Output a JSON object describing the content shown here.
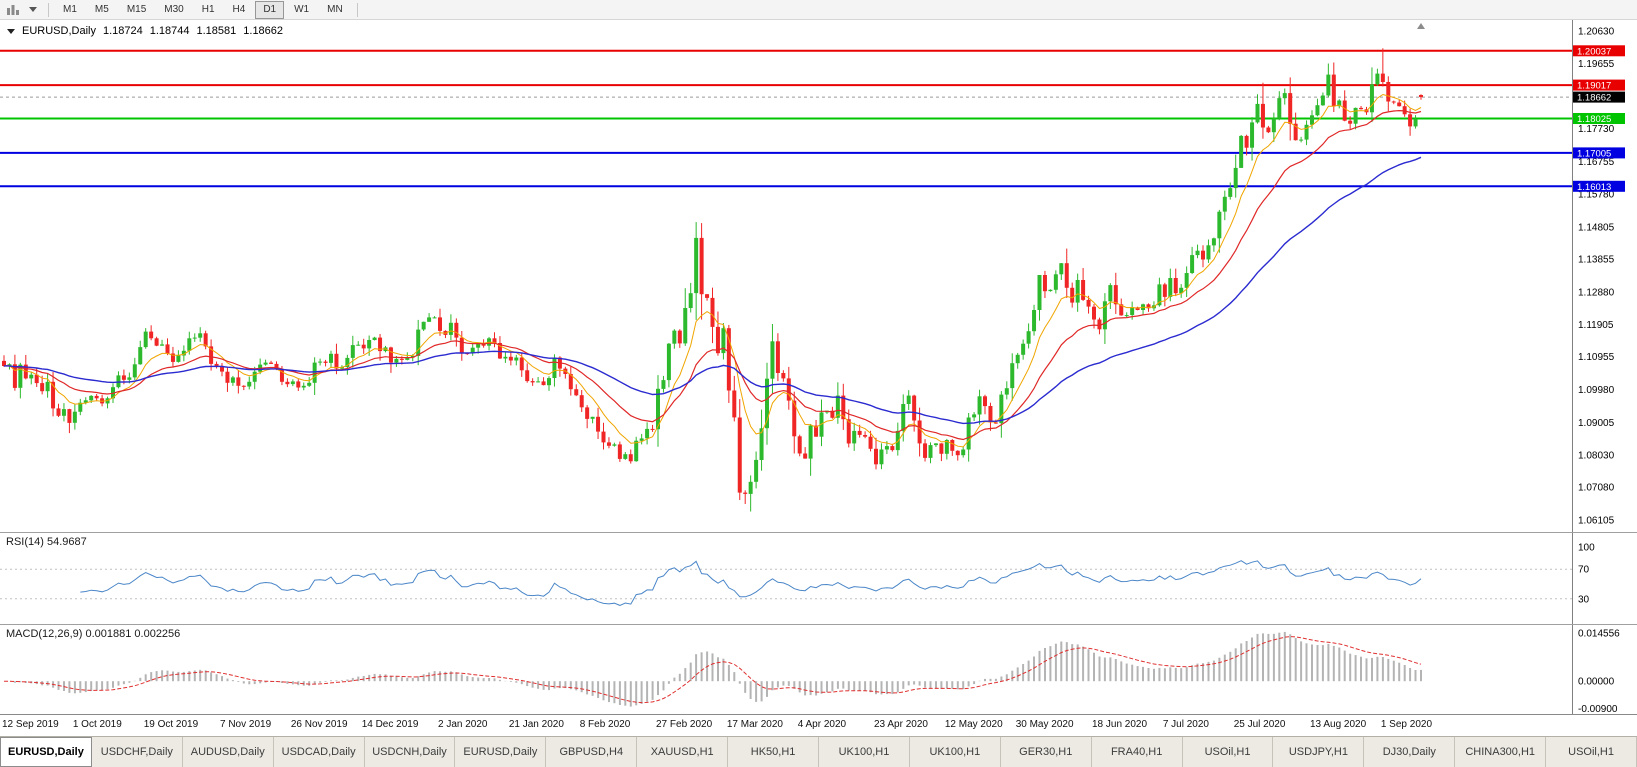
{
  "toolbar": {
    "timeframes": [
      "M1",
      "M5",
      "M15",
      "M30",
      "H1",
      "H4",
      "D1",
      "W1",
      "MN"
    ],
    "active_timeframe": "D1"
  },
  "chart": {
    "title": "EURUSD,Daily",
    "ohlc": {
      "open": "1.18724",
      "high": "1.18744",
      "low": "1.18581",
      "close": "1.18662"
    },
    "rsi_label": "RSI(14) 54.9687",
    "macd_label": "MACD(12,26,9) 0.001881 0.002256"
  },
  "chart_data": {
    "type": "candlestick",
    "symbol": "EURUSD",
    "timeframe": "Daily",
    "colors": {
      "up": "#2db92d",
      "down": "#f02525"
    },
    "price_range": {
      "min": 1.0575,
      "max": 1.2095
    },
    "closes": [
      1.1068,
      1.1073,
      1.1003,
      1.1072,
      1.1031,
      1.1042,
      1.1017,
      1.0993,
      1.1021,
      1.0942,
      1.092,
      1.094,
      1.0899,
      1.0932,
      1.0959,
      1.0966,
      1.0979,
      1.0972,
      1.0957,
      1.0972,
      1.1005,
      1.104,
      1.1027,
      1.1034,
      1.1073,
      1.1124,
      1.117,
      1.115,
      1.1128,
      1.1132,
      1.1105,
      1.108,
      1.1099,
      1.1113,
      1.115,
      1.1152,
      1.1165,
      1.1126,
      1.1074,
      1.1068,
      1.1051,
      1.1018,
      1.1034,
      1.1009,
      1.1007,
      1.1021,
      1.1051,
      1.1072,
      1.1078,
      1.1074,
      1.1058,
      1.1021,
      1.1014,
      1.1022,
      1.1004,
      1.1009,
      1.1018,
      1.1078,
      1.1081,
      1.1077,
      1.1104,
      1.106,
      1.1065,
      1.1092,
      1.113,
      1.1131,
      1.112,
      1.1145,
      1.1152,
      1.1112,
      1.1123,
      1.1078,
      1.1089,
      1.1086,
      1.1093,
      1.1098,
      1.1176,
      1.1199,
      1.1212,
      1.1212,
      1.1172,
      1.116,
      1.1196,
      1.1152,
      1.1106,
      1.1105,
      1.1122,
      1.1134,
      1.1128,
      1.115,
      1.1136,
      1.109,
      1.1095,
      1.1084,
      1.1093,
      1.1055,
      1.1023,
      1.1019,
      1.1022,
      1.1011,
      1.1032,
      1.1093,
      1.106,
      1.1044,
      1.0999,
      1.0981,
      1.0945,
      1.0911,
      1.0917,
      1.0873,
      1.0841,
      1.0831,
      1.0835,
      1.0792,
      1.0806,
      1.0785,
      1.0846,
      1.0853,
      1.0881,
      1.088,
      1.1,
      1.1026,
      1.1134,
      1.1173,
      1.1135,
      1.124,
      1.1284,
      1.1448,
      1.1281,
      1.127,
      1.1184,
      1.1106,
      1.118,
      1.0995,
      1.0915,
      1.0692,
      1.0688,
      1.0724,
      1.0789,
      1.0883,
      1.103,
      1.1141,
      1.1047,
      1.1031,
      1.0965,
      1.0859,
      1.0808,
      1.0793,
      1.0891,
      1.0858,
      1.093,
      1.0935,
      1.0914,
      1.098,
      1.091,
      1.0838,
      1.0875,
      1.0863,
      1.0858,
      1.0822,
      1.0776,
      1.082,
      1.083,
      1.0818,
      1.0875,
      1.0955,
      1.098,
      1.0906,
      1.0838,
      1.0795,
      1.0833,
      1.0838,
      1.0807,
      1.0848,
      1.0816,
      1.0803,
      1.082,
      1.0915,
      1.0924,
      1.0978,
      1.0949,
      1.09,
      1.0898,
      1.0983,
      1.1002,
      1.1076,
      1.1101,
      1.1134,
      1.1171,
      1.1234,
      1.1338,
      1.129,
      1.1294,
      1.134,
      1.1373,
      1.13,
      1.1256,
      1.1323,
      1.1264,
      1.1244,
      1.1206,
      1.1177,
      1.126,
      1.1308,
      1.1251,
      1.1218,
      1.1219,
      1.1242,
      1.1234,
      1.1251,
      1.1239,
      1.1248,
      1.131,
      1.1273,
      1.1329,
      1.1284,
      1.13,
      1.1344,
      1.1397,
      1.141,
      1.1384,
      1.1426,
      1.1447,
      1.1526,
      1.157,
      1.1596,
      1.1656,
      1.1751,
      1.1716,
      1.1791,
      1.1846,
      1.1776,
      1.1762,
      1.1803,
      1.1863,
      1.1878,
      1.1787,
      1.1738,
      1.174,
      1.1784,
      1.1812,
      1.1842,
      1.1871,
      1.1933,
      1.1839,
      1.1856,
      1.1796,
      1.1787,
      1.1834,
      1.183,
      1.1821,
      1.1904,
      1.1936,
      1.1911,
      1.1853,
      1.185,
      1.1839,
      1.1815,
      1.1779,
      1.1801,
      1.18662
    ],
    "wick_overrides": {
      "13": {
        "low": 1.0879
      },
      "115": {
        "low": 1.0778
      },
      "127": {
        "high": 1.1495
      },
      "135": {
        "low": 1.067
      },
      "136": {
        "low": 1.0658
      },
      "137": {
        "low": 1.0636
      },
      "231": {
        "high": 1.1909
      },
      "243": {
        "high": 1.1966
      },
      "253": {
        "high": 1.2011
      },
      "260": {
        "open": 1.18724,
        "high": 1.18744,
        "low": 1.18581,
        "close": 1.18662
      }
    },
    "price_axis_labels": [
      "1.20630",
      "1.19655",
      "1.17730",
      "1.16755",
      "1.15780",
      "1.14805",
      "1.13855",
      "1.12880",
      "1.11905",
      "1.10955",
      "1.09980",
      "1.09005",
      "1.08030",
      "1.07080",
      "1.06105"
    ],
    "level_lines": [
      {
        "value": 1.20037,
        "label": "1.20037",
        "color": "#e80000"
      },
      {
        "value": 1.19017,
        "label": "1.19017",
        "color": "#e80000"
      },
      {
        "value": 1.18025,
        "label": "1.18025",
        "color": "#00c400"
      },
      {
        "value": 1.17005,
        "label": "1.17005",
        "color": "#0000e0"
      },
      {
        "value": 1.16013,
        "label": "1.16013",
        "color": "#0000e0"
      }
    ],
    "current_price": {
      "value": 1.18662,
      "label": "1.18662",
      "color": "#000000"
    },
    "date_labels": [
      [
        "12 Sep 2019",
        0
      ],
      [
        "1 Oct 2019",
        13
      ],
      [
        "19 Oct 2019",
        26
      ],
      [
        "7 Nov 2019",
        40
      ],
      [
        "26 Nov 2019",
        53
      ],
      [
        "14 Dec 2019",
        66
      ],
      [
        "2 Jan 2020",
        80
      ],
      [
        "21 Jan 2020",
        93
      ],
      [
        "8 Feb 2020",
        106
      ],
      [
        "27 Feb 2020",
        120
      ],
      [
        "17 Mar 2020",
        133
      ],
      [
        "4 Apr 2020",
        146
      ],
      [
        "23 Apr 2020",
        160
      ],
      [
        "12 May 2020",
        173
      ],
      [
        "30 May 2020",
        186
      ],
      [
        "18 Jun 2020",
        200
      ],
      [
        "7 Jul 2020",
        213
      ],
      [
        "25 Jul 2020",
        226
      ],
      [
        "13 Aug 2020",
        240
      ],
      [
        "1 Sep 2020",
        253
      ]
    ],
    "moving_averages": [
      {
        "period": 8,
        "method": "ema",
        "color": "#f0a500",
        "width": 1
      },
      {
        "period": 20,
        "method": "ema",
        "color": "#e02828",
        "width": 1.2
      },
      {
        "period": 50,
        "method": "ema",
        "color": "#2b2bd0",
        "width": 1.4
      }
    ],
    "rsi": {
      "period": 14,
      "value": "54.9687",
      "color": "#4a86c8",
      "axis_labels": [
        "100",
        "70",
        "30"
      ],
      "levels_dashed": [
        70,
        30
      ]
    },
    "macd": {
      "fast": 12,
      "slow": 26,
      "signal": 9,
      "main_value": "0.001881",
      "signal_value": "0.002256",
      "histogram_color": "#b4b4b4",
      "signal_color": "#e03030",
      "range": {
        "max": 0.014556,
        "min": -0.009
      },
      "axis_labels": [
        {
          "label": "0.014556",
          "value": 0.014556
        },
        {
          "label": "0.00000",
          "value": 0
        },
        {
          "label": "-0.00900",
          "value": -0.009
        }
      ]
    }
  },
  "tabs": [
    "EURUSD,Daily",
    "USDCHF,Daily",
    "AUDUSD,Daily",
    "USDCAD,Daily",
    "USDCNH,Daily",
    "EURUSD,Daily",
    "GBPUSD,H4",
    "XAUUSD,H1",
    "HK50,H1",
    "UK100,H1",
    "UK100,H1",
    "GER30,H1",
    "FRA40,H1",
    "USOil,H1",
    "USDJPY,H1",
    "DJ30,Daily",
    "CHINA300,H1",
    "USOil,H1"
  ],
  "active_tab_index": 0
}
